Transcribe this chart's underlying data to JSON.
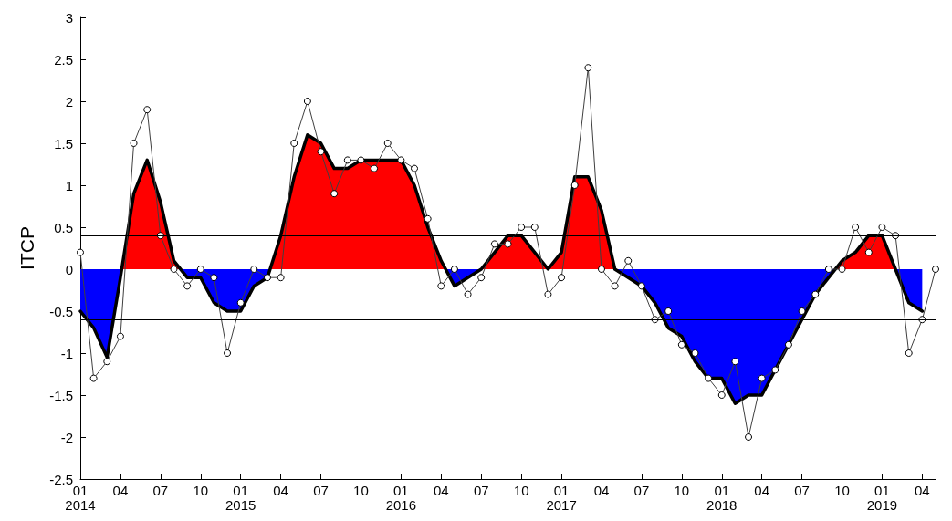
{
  "chart_data": {
    "type": "line",
    "ylabel": "ITCP",
    "series": [
      {
        "type": "area",
        "color": "#000000",
        "colors": [
          "#0000ff",
          "#0000ff",
          "#0000ff",
          "#0000ff",
          "#ff0000",
          "#ff0000",
          "#ff0000",
          "#ff0000",
          "#0000ff",
          "#0000ff",
          "#0000ff",
          "#0000ff",
          "#0000ff",
          "#0000ff",
          "#0000ff",
          "#ff0000",
          "#ff0000",
          "#ff0000",
          "#ff0000",
          "#ff0000",
          "#ff0000",
          "#ff0000",
          "#ff0000",
          "#ff0000",
          "#ff0000",
          "#ff0000",
          "#ff0000",
          "#ff0000",
          "#0000ff",
          "#0000ff",
          "#ff0000",
          "#ff0000",
          "#ff0000",
          "#ff0000",
          "#ff0000",
          "#ff0000",
          "#ff0000",
          "#ff0000",
          "#ff0000",
          "#ff0000",
          "#ff0000",
          "#0000ff",
          "#0000ff",
          "#0000ff",
          "#0000ff",
          "#0000ff",
          "#0000ff",
          "#0000ff",
          "#0000ff",
          "#0000ff",
          "#0000ff",
          "#0000ff",
          "#0000ff",
          "#0000ff",
          "#0000ff",
          "#0000ff",
          "#0000ff",
          "#ff0000",
          "#ff0000",
          "#ff0000",
          "#ff0000",
          "#ff0000",
          "#0000ff",
          "#0000ff"
        ],
        "marker": "none",
        "x": [
          "2014-01",
          "2014-02",
          "2014-03",
          "2014-04",
          "2014-05",
          "2014-06",
          "2014-07",
          "2014-08",
          "2014-09",
          "2014-10",
          "2014-11",
          "2014-12",
          "2015-01",
          "2015-02",
          "2015-03",
          "2015-04",
          "2015-05",
          "2015-06",
          "2015-07",
          "2015-08",
          "2015-09",
          "2015-10",
          "2015-11",
          "2015-12",
          "2016-01",
          "2016-02",
          "2016-03",
          "2016-04",
          "2016-05",
          "2016-06",
          "2016-07",
          "2016-08",
          "2016-09",
          "2016-10",
          "2016-11",
          "2016-12",
          "2017-01",
          "2017-02",
          "2017-03",
          "2017-04",
          "2017-05",
          "2017-06",
          "2017-07",
          "2017-08",
          "2017-09",
          "2017-10",
          "2017-11",
          "2017-12",
          "2018-01",
          "2018-02",
          "2018-03",
          "2018-04",
          "2018-05",
          "2018-06",
          "2018-07",
          "2018-08",
          "2018-09",
          "2018-10",
          "2018-11",
          "2018-12",
          "2019-01",
          "2019-02",
          "2019-03",
          "2019-04"
        ],
        "values": [
          -0.5,
          -0.7,
          -1.05,
          -0.1,
          0.9,
          1.3,
          0.8,
          0.1,
          -0.1,
          -0.1,
          -0.4,
          -0.5,
          -0.5,
          -0.2,
          -0.1,
          0.4,
          1.1,
          1.6,
          1.5,
          1.2,
          1.2,
          1.3,
          1.3,
          1.3,
          1.3,
          1.0,
          0.5,
          0.1,
          -0.2,
          -0.1,
          0,
          0.2,
          0.4,
          0.4,
          0.2,
          0,
          0.2,
          1.1,
          1.1,
          0.7,
          0,
          -0.1,
          -0.2,
          -0.4,
          -0.7,
          -0.8,
          -1.1,
          -1.3,
          -1.3,
          -1.6,
          -1.5,
          -1.5,
          -1.2,
          -0.9,
          -0.6,
          -0.3,
          -0.1,
          0.1,
          0.2,
          0.4,
          0.4,
          0,
          -0.4,
          -0.5
        ]
      },
      {
        "color": "#404040",
        "marker": "circle",
        "x": [
          "2014-01",
          "2014-02",
          "2014-03",
          "2014-04",
          "2014-05",
          "2014-06",
          "2014-07",
          "2014-08",
          "2014-09",
          "2014-10",
          "2014-11",
          "2014-12",
          "2015-01",
          "2015-02",
          "2015-03",
          "2015-04",
          "2015-05",
          "2015-06",
          "2015-07",
          "2015-08",
          "2015-09",
          "2015-10",
          "2015-11",
          "2015-12",
          "2016-01",
          "2016-02",
          "2016-03",
          "2016-04",
          "2016-05",
          "2016-06",
          "2016-07",
          "2016-08",
          "2016-09",
          "2016-10",
          "2016-11",
          "2016-12",
          "2017-01",
          "2017-02",
          "2017-03",
          "2017-04",
          "2017-05",
          "2017-06",
          "2017-07",
          "2017-08",
          "2017-09",
          "2017-10",
          "2017-11",
          "2017-12",
          "2018-01",
          "2018-02",
          "2018-03",
          "2018-04",
          "2018-05",
          "2018-06",
          "2018-07",
          "2018-08",
          "2018-09",
          "2018-10",
          "2018-11",
          "2018-12",
          "2019-01",
          "2019-02",
          "2019-03",
          "2019-04",
          "2019-05"
        ],
        "values": [
          0.2,
          -1.3,
          -1.1,
          -0.8,
          1.5,
          1.9,
          0.4,
          0,
          -0.2,
          0,
          -0.1,
          -1.0,
          -0.4,
          0,
          -0.1,
          -0.1,
          1.5,
          2.0,
          1.4,
          0.9,
          1.3,
          1.3,
          1.2,
          1.5,
          1.3,
          1.2,
          0.6,
          -0.2,
          0,
          -0.3,
          -0.1,
          0.3,
          0.3,
          0.5,
          0.5,
          -0.3,
          -0.1,
          1.0,
          2.4,
          0,
          -0.2,
          0.1,
          -0.2,
          -0.6,
          -0.5,
          -0.9,
          -1.0,
          -1.3,
          -1.5,
          -1.1,
          -2.0,
          -1.3,
          -1.2,
          -0.9,
          -0.5,
          -0.3,
          0,
          0,
          0.5,
          0.2,
          0.5,
          0.4,
          -1.0,
          -0.6,
          0
        ]
      }
    ],
    "xlim": [
      "2014-01",
      "2019-05"
    ],
    "xticks": [
      {
        "value": "2014-01",
        "label": "01\n2014"
      },
      {
        "value": "2014-04",
        "label": "04"
      },
      {
        "value": "2014-07",
        "label": "07"
      },
      {
        "value": "2014-10",
        "label": "10"
      },
      {
        "value": "2015-01",
        "label": "01\n2015"
      },
      {
        "value": "2015-04",
        "label": "04"
      },
      {
        "value": "2015-07",
        "label": "07"
      },
      {
        "value": "2015-10",
        "label": "10"
      },
      {
        "value": "2016-01",
        "label": "01\n2016"
      },
      {
        "value": "2016-04",
        "label": "04"
      },
      {
        "value": "2016-07",
        "label": "07"
      },
      {
        "value": "2016-10",
        "label": "10"
      },
      {
        "value": "2017-01",
        "label": "01\n2017"
      },
      {
        "value": "2017-04",
        "label": "04"
      },
      {
        "value": "2017-07",
        "label": "07"
      },
      {
        "value": "2017-10",
        "label": "10"
      },
      {
        "value": "2018-01",
        "label": "01\n2018"
      },
      {
        "value": "2018-04",
        "label": "04"
      },
      {
        "value": "2018-07",
        "label": "07"
      },
      {
        "value": "2018-10",
        "label": "10"
      },
      {
        "value": "2019-01",
        "label": "01\n2019"
      },
      {
        "value": "2019-04",
        "label": "04"
      }
    ],
    "ylim": [
      -2.5,
      3
    ],
    "yticks": [
      -2.5,
      -2,
      -1.5,
      -1,
      -0.5,
      0,
      0.5,
      1,
      1.5,
      2,
      2.5,
      3
    ],
    "ref_lines": [
      {
        "axis": "y",
        "value": 0.4,
        "label": null,
        "color": "#000000"
      },
      {
        "axis": "y",
        "value": -0.6,
        "label": null,
        "color": "#000000"
      }
    ],
    "grid": false
  }
}
